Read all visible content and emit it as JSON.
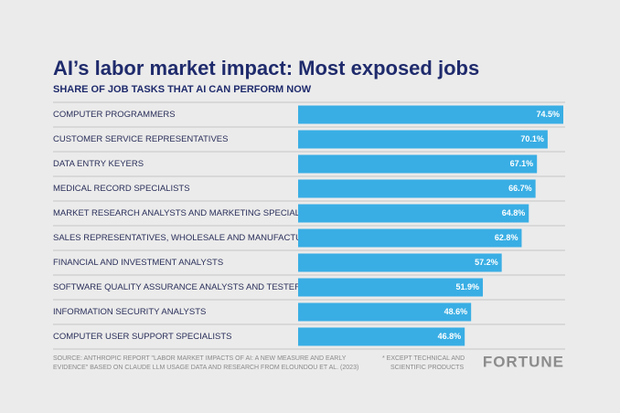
{
  "chart_data": {
    "type": "bar",
    "orientation": "horizontal",
    "title": "AI’s labor market impact: Most exposed jobs",
    "subtitle": "SHARE OF JOB TASKS THAT AI CAN PERFORM NOW",
    "categories": [
      "COMPUTER PROGRAMMERS",
      "CUSTOMER SERVICE REPRESENTATIVES",
      "DATA ENTRY KEYERS",
      "MEDICAL RECORD SPECIALISTS",
      "MARKET RESEARCH ANALYSTS AND MARKETING SPECIALISTS",
      "SALES REPRESENTATIVES, WHOLESALE AND MANUFACTURING*",
      "FINANCIAL AND INVESTMENT ANALYSTS",
      "SOFTWARE QUALITY ASSURANCE ANALYSTS AND TESTERS",
      "INFORMATION SECURITY ANALYSTS",
      "COMPUTER USER SUPPORT SPECIALISTS"
    ],
    "values": [
      74.5,
      70.1,
      67.1,
      66.7,
      64.8,
      62.8,
      57.2,
      51.9,
      48.6,
      46.8
    ],
    "value_labels": [
      "74.5%",
      "70.1%",
      "67.1%",
      "66.7%",
      "64.8%",
      "62.8%",
      "57.2%",
      "51.9%",
      "48.6%",
      "46.8%"
    ],
    "color": "#39aee4",
    "source": [
      "SOURCE: ANTHROPIC REPORT \"LABOR MARKET IMPACTS OF AI: A NEW MEASURE AND EARLY",
      "EVIDENCE\" BASED ON CLAUDE LLM USAGE DATA AND RESEARCH FROM ELOUNDOU ET AL. (2023)"
    ],
    "footnote": [
      "*  EXCEPT TECHNICAL AND",
      "SCIENTIFIC PRODUCTS"
    ],
    "brand": "FORTUNE"
  }
}
